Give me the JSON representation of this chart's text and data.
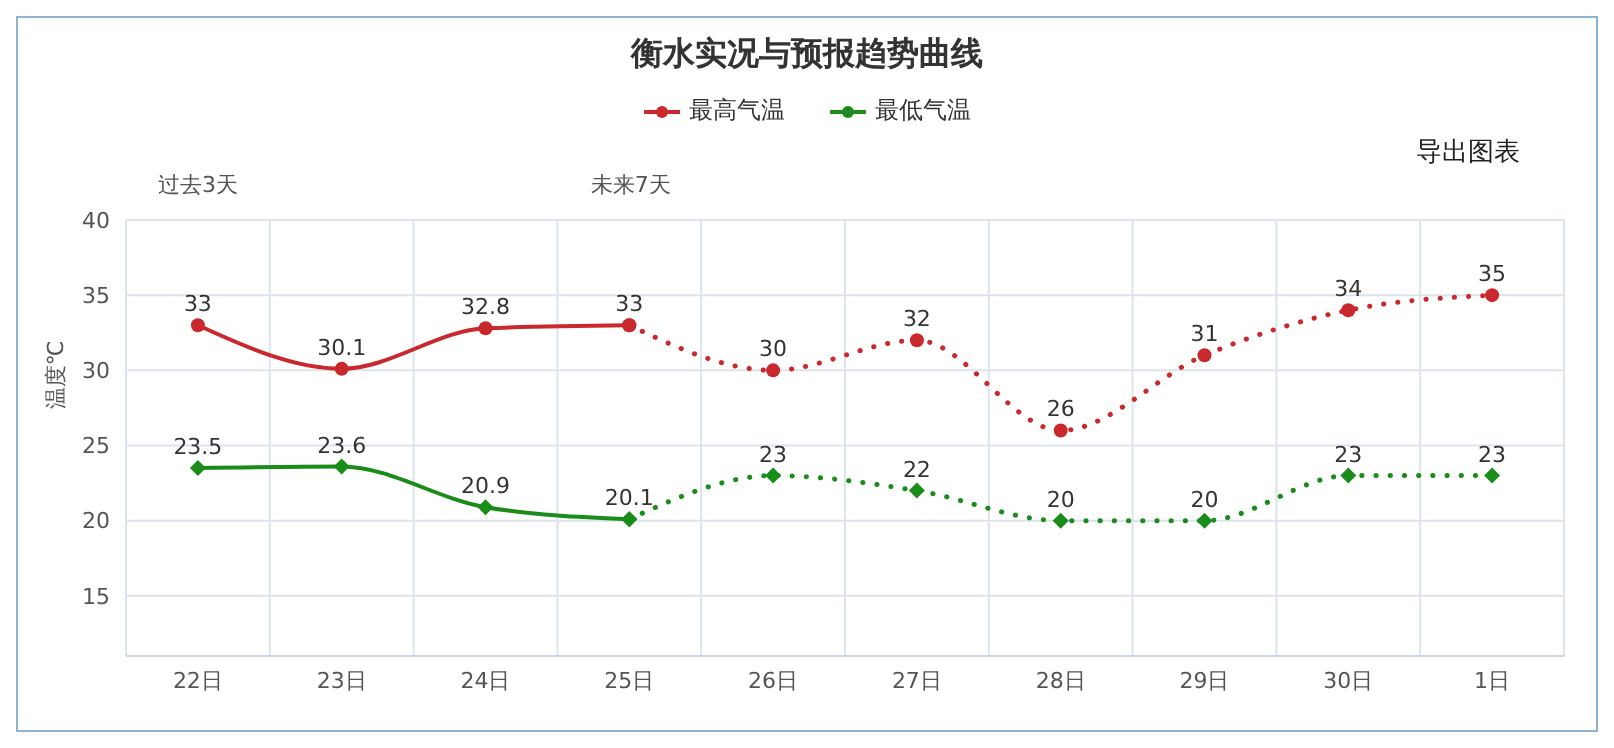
{
  "chart_data": {
    "type": "line",
    "title": "衡水实况与预报趋势曲线",
    "ylabel": "温度℃",
    "categories": [
      "22日",
      "23日",
      "24日",
      "25日",
      "26日",
      "27日",
      "28日",
      "29日",
      "30日",
      "1日"
    ],
    "series": [
      {
        "name": "最高气温",
        "color": "#c9282d",
        "line_style": "solid",
        "marker": "circle",
        "values": [
          33,
          30.1,
          32.8,
          33,
          null,
          null,
          null,
          null,
          null,
          null
        ],
        "value_labels": [
          "33",
          "30.1",
          "32.8",
          "33",
          null,
          null,
          null,
          null,
          null,
          null
        ]
      },
      {
        "name": "最低气温",
        "color": "#1a8c1a",
        "line_style": "solid",
        "marker": "diamond",
        "values": [
          23.5,
          23.6,
          20.9,
          20.1,
          null,
          null,
          null,
          null,
          null,
          null
        ],
        "value_labels": [
          "23.5",
          "23.6",
          "20.9",
          "20.1",
          null,
          null,
          null,
          null,
          null,
          null
        ]
      },
      {
        "color": "#c9282d",
        "line_style": "dotted",
        "marker": "circle",
        "values": [
          null,
          null,
          null,
          33,
          30,
          32,
          26,
          31,
          34,
          35
        ],
        "value_labels": [
          null,
          null,
          null,
          null,
          "30",
          "32",
          "26",
          "31",
          "34",
          "35"
        ]
      },
      {
        "color": "#1a8c1a",
        "line_style": "dotted",
        "marker": "diamond",
        "values": [
          null,
          null,
          null,
          20.1,
          23,
          22,
          20,
          20,
          23,
          23
        ],
        "value_labels": [
          null,
          null,
          null,
          null,
          "23",
          "22",
          "20",
          "20",
          "23",
          "23"
        ]
      }
    ],
    "ylim": [
      11,
      40
    ],
    "yticks": [
      15,
      20,
      25,
      30,
      35,
      40
    ],
    "grid": true,
    "legend": "top",
    "annotations": [
      "过去3天",
      "未来7天",
      "导出图表"
    ]
  }
}
